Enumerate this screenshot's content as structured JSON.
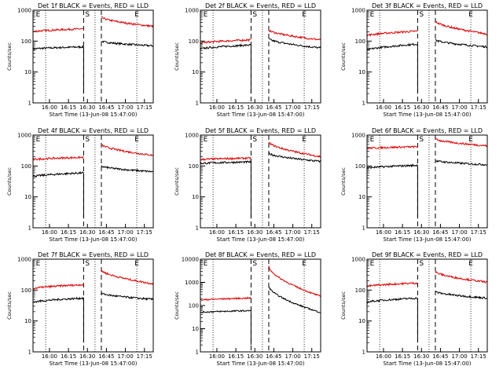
{
  "chart_data": [
    {
      "type": "line",
      "title": "Det 1f BLACK = Events, RED = LLD",
      "xlabel": "Start Time (13-Jun-08 15:47:00)",
      "ylabel": "Counts/sec",
      "yscale": "log",
      "ylim": [
        1,
        1000
      ],
      "xlim": [
        0,
        95
      ],
      "x_ticks": [
        {
          "pos": 13,
          "label": "16:00"
        },
        {
          "pos": 28,
          "label": "16:15"
        },
        {
          "pos": 43,
          "label": "16:30"
        },
        {
          "pos": 58,
          "label": "16:45"
        },
        {
          "pos": 73,
          "label": "17:00"
        },
        {
          "pos": 88,
          "label": "17:15"
        }
      ],
      "y_ticks": [
        "1",
        "10",
        "100",
        "1000"
      ],
      "markers": [
        {
          "x": 4,
          "label": "E"
        },
        {
          "x": 43,
          "label": "S"
        },
        {
          "x": 82,
          "label": "E"
        }
      ],
      "dashed": [
        40,
        54
      ],
      "dotted": [
        10,
        49,
        82
      ],
      "series": [
        {
          "name": "BLACK",
          "color": "#000000",
          "segments": [
            {
              "x": [
                0,
                40
              ],
              "y": [
                55,
                65
              ]
            },
            {
              "x": 54,
              "to": 95,
              "y": [
                100,
                70
              ]
            }
          ],
          "drop": [
            {
              "x": 40,
              "y": 2
            }
          ]
        },
        {
          "name": "RED",
          "color": "#e00000",
          "segments": [
            {
              "x": [
                0,
                40
              ],
              "y": [
                200,
                250
              ]
            },
            {
              "x": 54,
              "to": 95,
              "y": [
                600,
                300
              ]
            }
          ]
        }
      ]
    },
    {
      "type": "line",
      "title": "Det 2f BLACK = Events, RED = LLD",
      "xlabel": "Start Time (13-Jun-08 15:47:00)",
      "ylabel": "Counts/sec",
      "yscale": "log",
      "ylim": [
        1,
        1000
      ],
      "xlim": [
        0,
        95
      ],
      "x_ticks": [
        {
          "pos": 13,
          "label": "16:00"
        },
        {
          "pos": 28,
          "label": "16:15"
        },
        {
          "pos": 43,
          "label": "16:30"
        },
        {
          "pos": 58,
          "label": "16:45"
        },
        {
          "pos": 73,
          "label": "17:00"
        },
        {
          "pos": 88,
          "label": "17:15"
        }
      ],
      "y_ticks": [
        "1",
        "10",
        "100",
        "1000"
      ],
      "markers": [
        {
          "x": 4,
          "label": "E"
        },
        {
          "x": 43,
          "label": "S"
        },
        {
          "x": 82,
          "label": "E"
        }
      ],
      "dashed": [
        40,
        54
      ],
      "dotted": [
        10,
        49,
        82
      ],
      "series": [
        {
          "name": "BLACK",
          "color": "#000000",
          "segments": [
            {
              "x": [
                0,
                40
              ],
              "y": [
                55,
                75
              ]
            },
            {
              "x": 54,
              "to": 95,
              "y": [
                120,
                60
              ]
            }
          ],
          "drop": [
            {
              "x": 40,
              "y": 2
            }
          ]
        },
        {
          "name": "RED",
          "color": "#e00000",
          "segments": [
            {
              "x": [
                0,
                40
              ],
              "y": [
                85,
                110
              ]
            },
            {
              "x": 54,
              "to": 95,
              "y": [
                230,
                110
              ]
            }
          ]
        }
      ]
    },
    {
      "type": "line",
      "title": "Det 3f BLACK = Events, RED = LLD",
      "xlabel": "Start Time (13-Jun-08 15:47:00)",
      "ylabel": "Counts/sec",
      "yscale": "log",
      "ylim": [
        1,
        1000
      ],
      "xlim": [
        0,
        95
      ],
      "x_ticks": [
        {
          "pos": 13,
          "label": "16:00"
        },
        {
          "pos": 28,
          "label": "16:15"
        },
        {
          "pos": 43,
          "label": "16:30"
        },
        {
          "pos": 58,
          "label": "16:45"
        },
        {
          "pos": 73,
          "label": "17:00"
        },
        {
          "pos": 88,
          "label": "17:15"
        }
      ],
      "y_ticks": [
        "1",
        "10",
        "100",
        "1000"
      ],
      "markers": [
        {
          "x": 4,
          "label": "E"
        },
        {
          "x": 43,
          "label": "S"
        },
        {
          "x": 82,
          "label": "E"
        }
      ],
      "dashed": [
        40,
        54
      ],
      "dotted": [
        10,
        49,
        82
      ],
      "series": [
        {
          "name": "BLACK",
          "color": "#000000",
          "segments": [
            {
              "x": [
                0,
                40
              ],
              "y": [
                50,
                80
              ]
            },
            {
              "x": 54,
              "to": 95,
              "y": [
                110,
                65
              ]
            }
          ],
          "drop": [
            {
              "x": 40,
              "y": 2
            }
          ]
        },
        {
          "name": "RED",
          "color": "#e00000",
          "segments": [
            {
              "x": [
                0,
                40
              ],
              "y": [
                150,
                210
              ]
            },
            {
              "x": 54,
              "to": 95,
              "y": [
                450,
                170
              ]
            }
          ]
        }
      ]
    },
    {
      "type": "line",
      "title": "Det 4f BLACK = Events, RED = LLD",
      "xlabel": "Start Time (13-Jun-08 15:47:00)",
      "ylabel": "Counts/sec",
      "yscale": "log",
      "ylim": [
        1,
        1000
      ],
      "xlim": [
        0,
        95
      ],
      "x_ticks": [
        {
          "pos": 13,
          "label": "16:00"
        },
        {
          "pos": 28,
          "label": "16:15"
        },
        {
          "pos": 43,
          "label": "16:30"
        },
        {
          "pos": 58,
          "label": "16:45"
        },
        {
          "pos": 73,
          "label": "17:00"
        },
        {
          "pos": 88,
          "label": "17:15"
        }
      ],
      "y_ticks": [
        "1",
        "10",
        "100",
        "1000"
      ],
      "markers": [
        {
          "x": 4,
          "label": "E"
        },
        {
          "x": 43,
          "label": "S"
        },
        {
          "x": 82,
          "label": "E"
        }
      ],
      "dashed": [
        40,
        54
      ],
      "dotted": [
        10,
        49,
        82
      ],
      "series": [
        {
          "name": "BLACK",
          "color": "#000000",
          "segments": [
            {
              "x": [
                0,
                40
              ],
              "y": [
                45,
                60
              ]
            },
            {
              "x": 54,
              "to": 95,
              "y": [
                100,
                65
              ]
            }
          ],
          "drop": [
            {
              "x": 40,
              "y": 2
            }
          ]
        },
        {
          "name": "RED",
          "color": "#e00000",
          "segments": [
            {
              "x": [
                0,
                40
              ],
              "y": [
                160,
                190
              ]
            },
            {
              "x": 54,
              "to": 95,
              "y": [
                500,
                220
              ]
            }
          ]
        }
      ]
    },
    {
      "type": "line",
      "title": "Det 5f BLACK = Events, RED = LLD",
      "xlabel": "Start Time (13-Jun-08 15:47:00)",
      "ylabel": "Counts/sec",
      "yscale": "log",
      "ylim": [
        1,
        1000
      ],
      "xlim": [
        0,
        95
      ],
      "x_ticks": [
        {
          "pos": 13,
          "label": "16:00"
        },
        {
          "pos": 28,
          "label": "16:15"
        },
        {
          "pos": 43,
          "label": "16:30"
        },
        {
          "pos": 58,
          "label": "16:45"
        },
        {
          "pos": 73,
          "label": "17:00"
        },
        {
          "pos": 88,
          "label": "17:15"
        }
      ],
      "y_ticks": [
        "1",
        "10",
        "100",
        "1000"
      ],
      "markers": [
        {
          "x": 4,
          "label": "E"
        },
        {
          "x": 43,
          "label": "S"
        },
        {
          "x": 82,
          "label": "E"
        }
      ],
      "dashed": [
        40,
        54
      ],
      "dotted": [
        10,
        49,
        82
      ],
      "series": [
        {
          "name": "BLACK",
          "color": "#000000",
          "segments": [
            {
              "x": [
                0,
                40
              ],
              "y": [
                120,
                135
              ]
            },
            {
              "x": 54,
              "to": 95,
              "y": [
                260,
                140
              ]
            }
          ],
          "drop": [
            {
              "x": 40,
              "y": 2
            }
          ]
        },
        {
          "name": "RED",
          "color": "#e00000",
          "segments": [
            {
              "x": [
                0,
                40
              ],
              "y": [
                160,
                180
              ]
            },
            {
              "x": 54,
              "to": 95,
              "y": [
                600,
                200
              ]
            }
          ]
        }
      ]
    },
    {
      "type": "line",
      "title": "Det 6f BLACK = Events, RED = LLD",
      "xlabel": "Start Time (13-Jun-08 15:47:00)",
      "ylabel": "Counts/sec",
      "yscale": "log",
      "ylim": [
        1,
        1000
      ],
      "xlim": [
        0,
        95
      ],
      "x_ticks": [
        {
          "pos": 13,
          "label": "16:00"
        },
        {
          "pos": 28,
          "label": "16:15"
        },
        {
          "pos": 43,
          "label": "16:30"
        },
        {
          "pos": 58,
          "label": "16:45"
        },
        {
          "pos": 73,
          "label": "17:00"
        },
        {
          "pos": 88,
          "label": "17:15"
        }
      ],
      "y_ticks": [
        "1",
        "10",
        "100",
        "1000"
      ],
      "markers": [
        {
          "x": 4,
          "label": "E"
        },
        {
          "x": 43,
          "label": "S"
        },
        {
          "x": 82,
          "label": "E"
        }
      ],
      "dashed": [
        40,
        54
      ],
      "dotted": [
        10,
        49,
        82
      ],
      "series": [
        {
          "name": "BLACK",
          "color": "#000000",
          "segments": [
            {
              "x": [
                0,
                40
              ],
              "y": [
                85,
                105
              ]
            },
            {
              "x": 54,
              "to": 95,
              "y": [
                150,
                110
              ]
            }
          ],
          "drop": [
            {
              "x": 40,
              "y": 2
            }
          ]
        },
        {
          "name": "RED",
          "color": "#e00000",
          "segments": [
            {
              "x": [
                0,
                40
              ],
              "y": [
                370,
                420
              ]
            },
            {
              "x": 54,
              "to": 95,
              "y": [
                750,
                450
              ]
            }
          ]
        }
      ]
    },
    {
      "type": "line",
      "title": "Det 7f BLACK = Events, RED = LLD",
      "xlabel": "Start Time (13-Jun-08 15:47:00)",
      "ylabel": "Counts/sec",
      "yscale": "log",
      "ylim": [
        1,
        1000
      ],
      "xlim": [
        0,
        95
      ],
      "x_ticks": [
        {
          "pos": 13,
          "label": "16:00"
        },
        {
          "pos": 28,
          "label": "16:15"
        },
        {
          "pos": 43,
          "label": "16:30"
        },
        {
          "pos": 58,
          "label": "16:45"
        },
        {
          "pos": 73,
          "label": "17:00"
        },
        {
          "pos": 88,
          "label": "17:15"
        }
      ],
      "y_ticks": [
        "1",
        "10",
        "100",
        "1000"
      ],
      "markers": [
        {
          "x": 4,
          "label": "E"
        },
        {
          "x": 43,
          "label": "S"
        },
        {
          "x": 82,
          "label": "E"
        }
      ],
      "dashed": [
        40,
        54
      ],
      "dotted": [
        10,
        49,
        82
      ],
      "series": [
        {
          "name": "BLACK",
          "color": "#000000",
          "segments": [
            {
              "x": [
                0,
                40
              ],
              "y": [
                40,
                55
              ]
            },
            {
              "x": 54,
              "to": 95,
              "y": [
                80,
                50
              ]
            }
          ],
          "drop": [
            {
              "x": 40,
              "y": 2
            }
          ]
        },
        {
          "name": "RED",
          "color": "#e00000",
          "segments": [
            {
              "x": [
                0,
                40
              ],
              "y": [
                110,
                150
              ]
            },
            {
              "x": 54,
              "to": 95,
              "y": [
                450,
                160
              ]
            }
          ]
        }
      ]
    },
    {
      "type": "line",
      "title": "Det 8f BLACK = Events, RED = LLD",
      "xlabel": "Start Time (13-Jun-08 15:47:00)",
      "ylabel": "Counts/sec",
      "yscale": "log",
      "ylim": [
        1,
        10000
      ],
      "xlim": [
        0,
        95
      ],
      "x_ticks": [
        {
          "pos": 13,
          "label": "16:00"
        },
        {
          "pos": 28,
          "label": "16:15"
        },
        {
          "pos": 43,
          "label": "16:30"
        },
        {
          "pos": 58,
          "label": "16:45"
        },
        {
          "pos": 73,
          "label": "17:00"
        },
        {
          "pos": 88,
          "label": "17:15"
        }
      ],
      "y_ticks": [
        "1",
        "10",
        "100",
        "1000",
        "10000"
      ],
      "markers": [
        {
          "x": 4,
          "label": "E"
        },
        {
          "x": 43,
          "label": "S"
        },
        {
          "x": 82,
          "label": "E"
        }
      ],
      "dashed": [
        40,
        54
      ],
      "dotted": [
        10,
        49,
        82
      ],
      "series": [
        {
          "name": "BLACK",
          "color": "#000000",
          "segments": [
            {
              "x": [
                0,
                40
              ],
              "y": [
                50,
                60
              ]
            },
            {
              "x": 54,
              "to": 95,
              "y": [
                700,
                50
              ]
            }
          ],
          "drop": [
            {
              "x": 40,
              "y": 2
            }
          ]
        },
        {
          "name": "RED",
          "color": "#e00000",
          "segments": [
            {
              "x": [
                0,
                40
              ],
              "y": [
                170,
                210
              ]
            },
            {
              "x": 54,
              "to": 95,
              "y": [
                5000,
                250
              ]
            }
          ]
        }
      ]
    },
    {
      "type": "line",
      "title": "Det 9f BLACK = Events, RED = LLD",
      "xlabel": "Start Time (13-Jun-08 15:47:00)",
      "ylabel": "Counts/sec",
      "yscale": "log",
      "ylim": [
        1,
        1000
      ],
      "xlim": [
        0,
        95
      ],
      "x_ticks": [
        {
          "pos": 13,
          "label": "16:00"
        },
        {
          "pos": 28,
          "label": "16:15"
        },
        {
          "pos": 43,
          "label": "16:30"
        },
        {
          "pos": 58,
          "label": "16:45"
        },
        {
          "pos": 73,
          "label": "17:00"
        },
        {
          "pos": 88,
          "label": "17:15"
        }
      ],
      "y_ticks": [
        "1",
        "10",
        "100",
        "1000"
      ],
      "markers": [
        {
          "x": 4,
          "label": "E"
        },
        {
          "x": 43,
          "label": "S"
        },
        {
          "x": 82,
          "label": "E"
        }
      ],
      "dashed": [
        40,
        54
      ],
      "dotted": [
        10,
        49,
        82
      ],
      "series": [
        {
          "name": "BLACK",
          "color": "#000000",
          "segments": [
            {
              "x": [
                0,
                40
              ],
              "y": [
                40,
                55
              ]
            },
            {
              "x": 54,
              "to": 95,
              "y": [
                90,
                55
              ]
            }
          ],
          "drop": [
            {
              "x": 40,
              "y": 2
            }
          ]
        },
        {
          "name": "RED",
          "color": "#e00000",
          "segments": [
            {
              "x": [
                0,
                40
              ],
              "y": [
                130,
                170
              ]
            },
            {
              "x": 54,
              "to": 95,
              "y": [
                400,
                180
              ]
            }
          ]
        }
      ]
    }
  ]
}
